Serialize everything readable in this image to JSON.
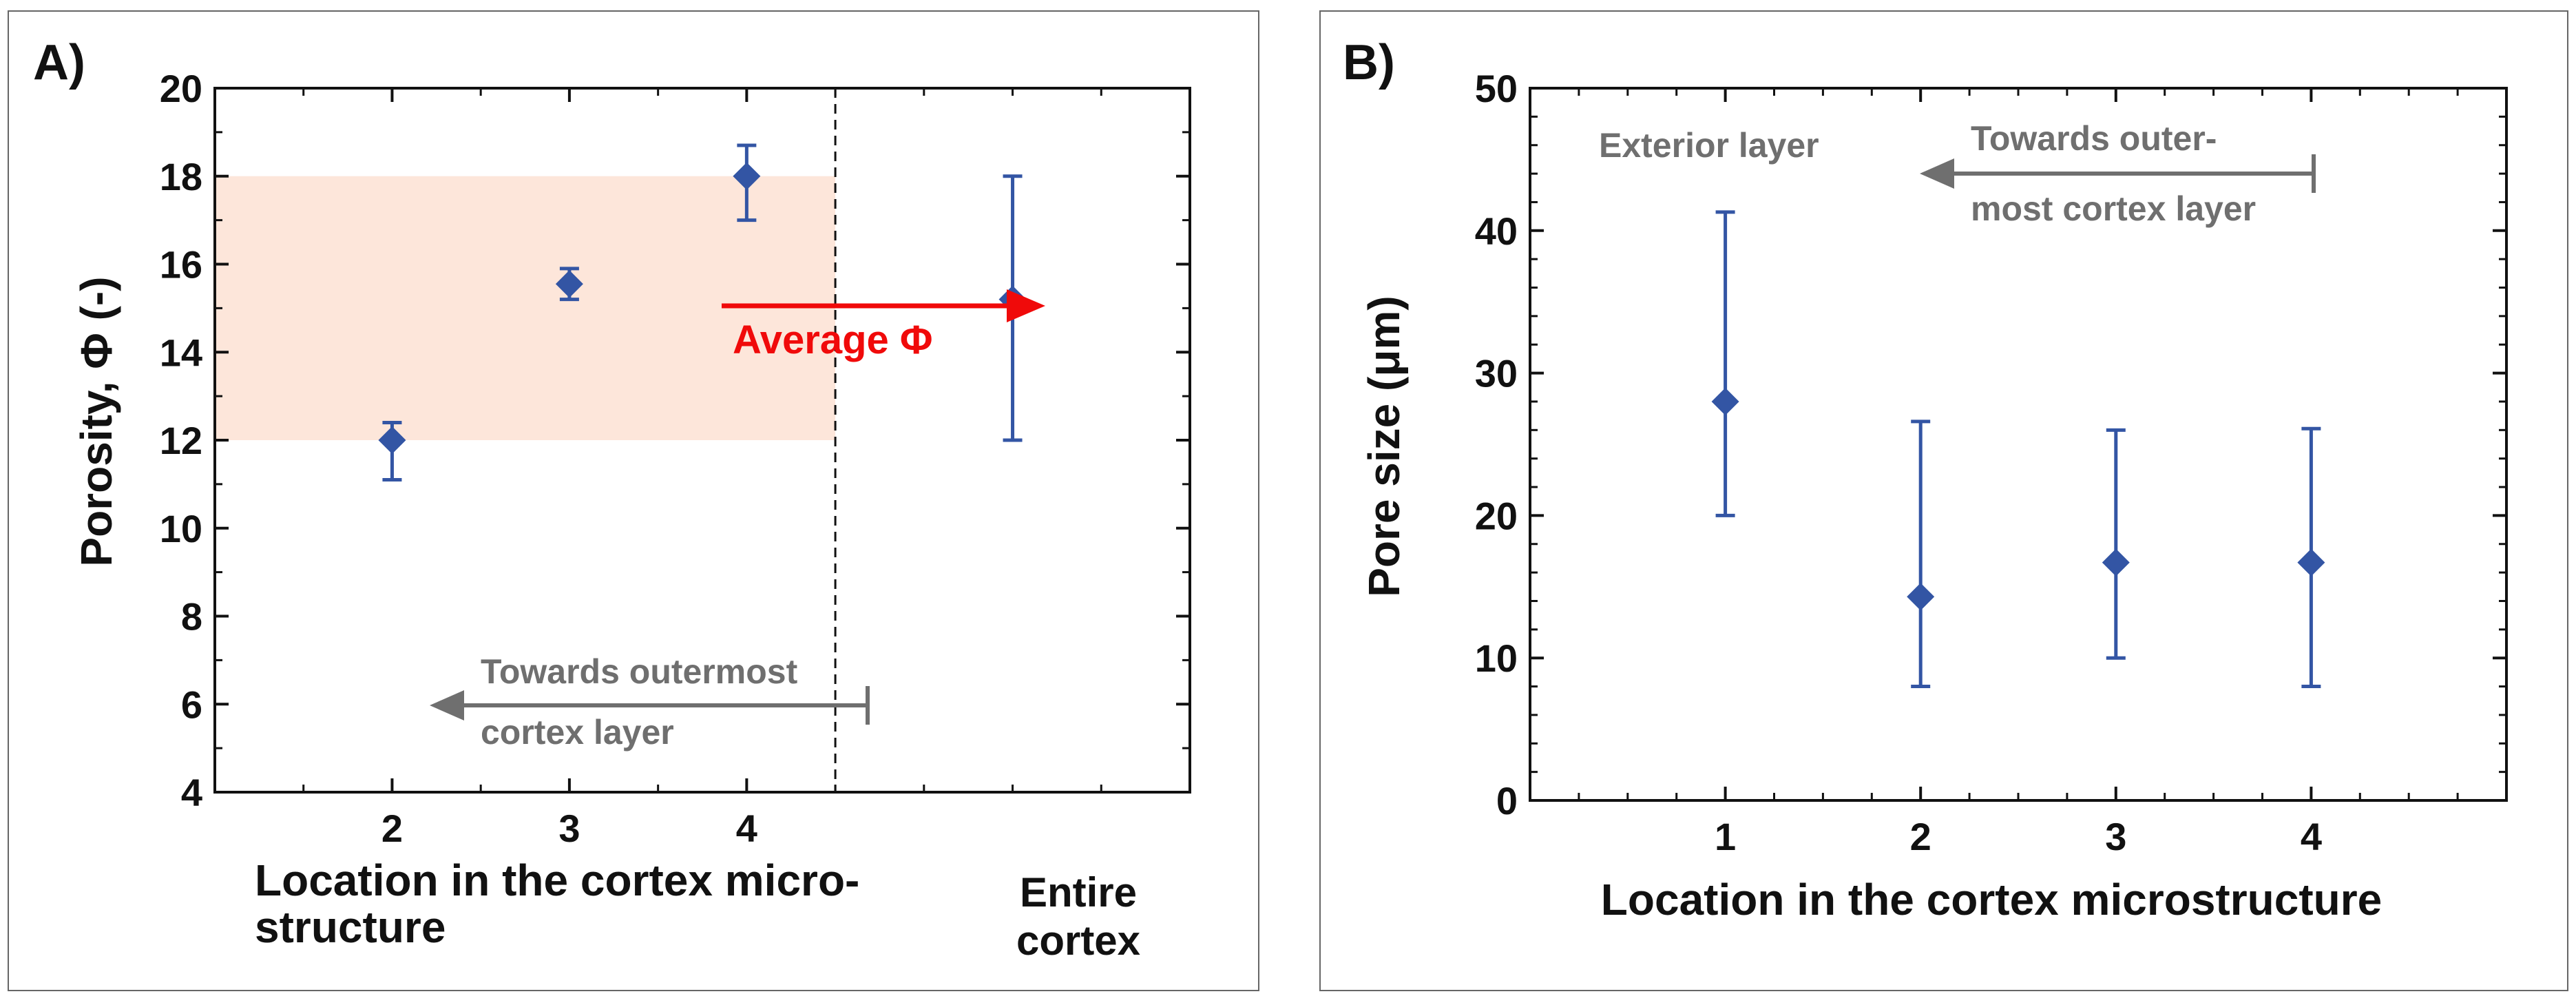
{
  "chart_data": [
    {
      "panel": "A)",
      "type": "scatter",
      "title": "",
      "xlabel": "Location in the cortex micro-\nstructure",
      "ylabel": "Porosity, Φ (-)",
      "ylim": [
        4,
        20
      ],
      "yticks": [
        4,
        6,
        8,
        10,
        12,
        14,
        16,
        18,
        20
      ],
      "xlim": [
        1,
        6.5
      ],
      "categories": [
        "2",
        "3",
        "4"
      ],
      "x": [
        2,
        3,
        4
      ],
      "values": [
        12.0,
        15.55,
        18.0
      ],
      "err_low": [
        11.1,
        15.2,
        17.0
      ],
      "err_high": [
        12.4,
        15.9,
        18.7
      ],
      "extra_point": {
        "label": "Entire\ncortex",
        "x": 5.5,
        "value": 15.2,
        "err_low": 12.0,
        "err_high": 18.0
      },
      "shaded_band": {
        "from": 12,
        "to": 18,
        "x_end": 4.5,
        "color": "#fde6da"
      },
      "divider_x": 4.5,
      "annotations": {
        "average": "Average Φ",
        "towards": "Towards outermost\ncortex layer"
      },
      "colors": {
        "marker": "#3355a4",
        "arrow_red": "#f00a0a",
        "arrow_gray": "#6f6f6f",
        "text_gray": "#6f6f6f"
      }
    },
    {
      "panel": "B)",
      "type": "scatter",
      "title": "",
      "xlabel": "Location in the cortex microstructure",
      "ylabel": "Pore size (μm)",
      "ylim": [
        0,
        50
      ],
      "yticks": [
        0,
        10,
        20,
        30,
        40,
        50
      ],
      "xlim": [
        0,
        5
      ],
      "categories": [
        "1",
        "2",
        "3",
        "4"
      ],
      "x": [
        1,
        2,
        3,
        4
      ],
      "values": [
        28.0,
        14.3,
        16.7,
        16.7
      ],
      "err_low": [
        20.0,
        8.0,
        10.0,
        8.0
      ],
      "err_high": [
        41.3,
        26.6,
        26.0,
        26.1
      ],
      "annotations": {
        "exterior": "Exterior layer",
        "towards": "Towards outer-\nmost cortex layer"
      },
      "colors": {
        "marker": "#3355a4",
        "arrow_gray": "#6f6f6f",
        "text_gray": "#6f6f6f"
      }
    }
  ]
}
